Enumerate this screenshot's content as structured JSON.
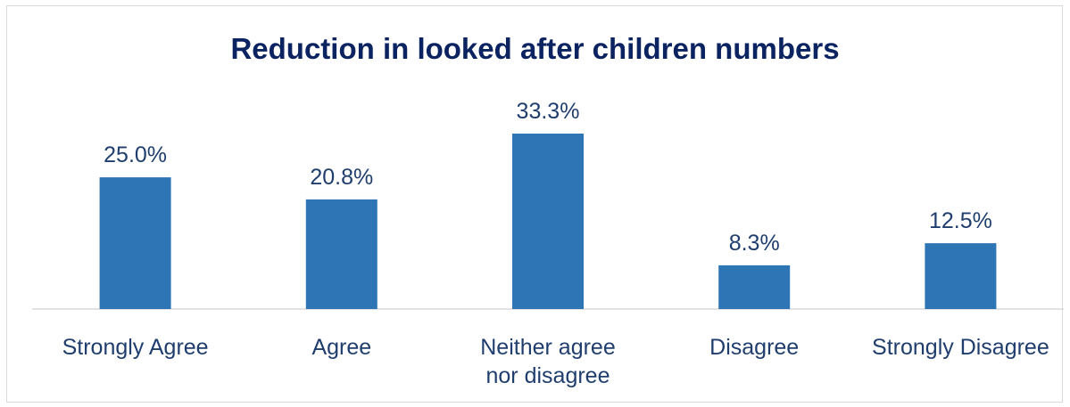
{
  "chart_data": {
    "type": "bar",
    "title": "Reduction in looked after children numbers",
    "xlabel": "",
    "ylabel": "",
    "categories": [
      "Strongly Agree",
      "Agree",
      "Neither agree nor disagree",
      "Disagree",
      "Strongly Disagree"
    ],
    "category_lines": [
      [
        "Strongly Agree"
      ],
      [
        "Agree"
      ],
      [
        "Neither agree",
        "nor disagree"
      ],
      [
        "Disagree"
      ],
      [
        "Strongly Disagree"
      ]
    ],
    "values": [
      25.0,
      20.8,
      33.3,
      8.3,
      12.5
    ],
    "value_labels": [
      "25.0%",
      "20.8%",
      "33.3%",
      "8.3%",
      "12.5%"
    ],
    "unit": "%",
    "ylim": [
      0,
      33.3
    ],
    "grid": false,
    "legend": "none",
    "colors": {
      "bar": "#2e75b6",
      "title": "#0b2361",
      "text": "#1f3e6e",
      "axis": "#d9d9d9"
    }
  }
}
